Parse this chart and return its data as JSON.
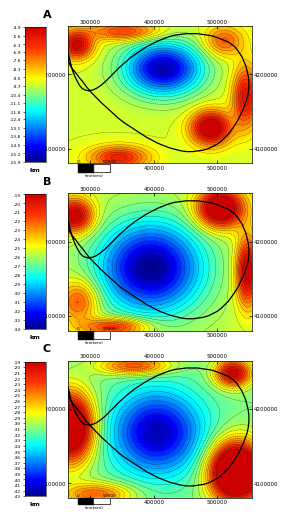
{
  "panels": [
    {
      "label": "A",
      "vmin": -15.9,
      "vmax": -4.9,
      "colorbar_ticks": [
        -4.9,
        -5.6,
        -6.3,
        -6.9,
        -7.6,
        -8.3,
        -9.0,
        -9.7,
        -10.4,
        -11.1,
        -11.8,
        -12.4,
        -13.1,
        -13.8,
        -14.5,
        -15.2,
        -15.9
      ],
      "colorbar_tick_labels": [
        "-4.9",
        "-5.6",
        "-6.3",
        "-6.9",
        "-7.6",
        "-8.3",
        "-9.0",
        "-9.7",
        "-10.4",
        "-11.1",
        "-11.8",
        "-12.4",
        "-13.1",
        "-13.8",
        "-14.5",
        "-15.2",
        "-15.9"
      ]
    },
    {
      "label": "B",
      "vmin": -34.0,
      "vmax": -19.0,
      "colorbar_ticks": [
        -19,
        -20,
        -21,
        -22,
        -23,
        -24,
        -25,
        -26,
        -27,
        -28,
        -29,
        -30,
        -31,
        -32,
        -33,
        -34
      ],
      "colorbar_tick_labels": [
        "-19",
        "-20",
        "-21",
        "-22",
        "-23",
        "-24",
        "-25",
        "-26",
        "-27",
        "-28",
        "-29",
        "-30",
        "-31",
        "-32",
        "-33",
        "-34"
      ]
    },
    {
      "label": "C",
      "vmin": -43.0,
      "vmax": -19.0,
      "colorbar_ticks": [
        -19,
        -20,
        -21,
        -22,
        -23,
        -24,
        -25,
        -26,
        -27,
        -28,
        -29,
        -30,
        -31,
        -32,
        -33,
        -34,
        -35,
        -36,
        -37,
        -38,
        -39,
        -40,
        -41,
        -42,
        -43
      ],
      "colorbar_tick_labels": [
        "-19",
        "-20",
        "-21",
        "-22",
        "-23",
        "-24",
        "-25",
        "-26",
        "-27",
        "-28",
        "-29",
        "-30",
        "-31",
        "-32",
        "-33",
        "-34",
        "-35",
        "-36",
        "-37",
        "-38",
        "-39",
        "-40",
        "-41",
        "-42",
        "-43"
      ]
    }
  ],
  "xlim": [
    265000,
    555000
  ],
  "ylim": [
    4080000,
    4265000
  ],
  "xticks": [
    300000,
    400000,
    500000
  ],
  "yticks": [
    4100000,
    4200000
  ],
  "cmap_colors": [
    [
      0.0,
      "#00008B"
    ],
    [
      0.12,
      "#0000FF"
    ],
    [
      0.25,
      "#007FFF"
    ],
    [
      0.38,
      "#00FFFF"
    ],
    [
      0.5,
      "#7FFF7F"
    ],
    [
      0.62,
      "#FFFF00"
    ],
    [
      0.72,
      "#FFA500"
    ],
    [
      0.85,
      "#FF3300"
    ],
    [
      1.0,
      "#CC0000"
    ]
  ],
  "coast_x": [
    265000,
    268000,
    271000,
    275000,
    279000,
    283000,
    287000,
    292000,
    297000,
    303000,
    309000,
    316000,
    323000,
    330000,
    337000,
    345000,
    353000,
    361000,
    370000,
    379000,
    388000,
    397000,
    406000,
    415000,
    424000,
    433000,
    442000,
    451000,
    460000,
    469000,
    477000,
    485000,
    492000,
    499000,
    505000,
    511000,
    517000,
    522000,
    527000,
    531000,
    535000,
    539000,
    542000,
    545000,
    547000,
    549000,
    550000,
    550000,
    549000,
    547000,
    544000,
    541000,
    537000,
    533000,
    528000,
    523000,
    518000,
    512000,
    506000,
    500000,
    493000,
    486000,
    478000,
    470000,
    461000,
    452000,
    443000,
    434000,
    425000,
    416000,
    407000,
    398000,
    389000,
    380000,
    371000,
    362000,
    353000,
    344000,
    335000,
    326000,
    317000,
    309000,
    301000,
    294000,
    288000,
    282000,
    277000,
    272000,
    268000,
    265000,
    265000
  ],
  "coast_y": [
    4228000,
    4217000,
    4207000,
    4198000,
    4191000,
    4185000,
    4181000,
    4179000,
    4178000,
    4179000,
    4181000,
    4185000,
    4190000,
    4196000,
    4202000,
    4209000,
    4215000,
    4221000,
    4227000,
    4232000,
    4237000,
    4241000,
    4245000,
    4248000,
    4251000,
    4253000,
    4254000,
    4255000,
    4255000,
    4255000,
    4254000,
    4253000,
    4252000,
    4250000,
    4248000,
    4246000,
    4244000,
    4241000,
    4238000,
    4234000,
    4229000,
    4224000,
    4218000,
    4212000,
    4205000,
    4198000,
    4191000,
    4183000,
    4175000,
    4167000,
    4160000,
    4153000,
    4146000,
    4139000,
    4132000,
    4126000,
    4120000,
    4115000,
    4110000,
    4106000,
    4103000,
    4100000,
    4098000,
    4097000,
    4096000,
    4096000,
    4097000,
    4099000,
    4101000,
    4104000,
    4107000,
    4111000,
    4115000,
    4120000,
    4125000,
    4130000,
    4135000,
    4141000,
    4148000,
    4155000,
    4162000,
    4169000,
    4176000,
    4183000,
    4190000,
    4196000,
    4202000,
    4207000,
    4212000,
    4218000,
    4228000
  ]
}
